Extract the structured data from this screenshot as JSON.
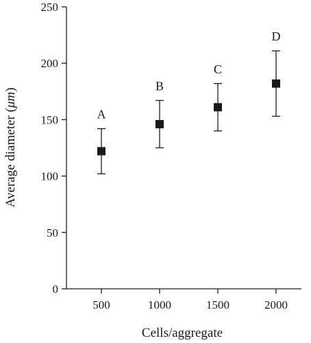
{
  "chart_data": {
    "type": "scatter",
    "title": "",
    "xlabel": "Cells/aggregate",
    "ylabel_prefix": "Average diameter (",
    "ylabel_unit": "μm",
    "ylabel_suffix": ")",
    "categories": [
      "500",
      "1000",
      "1500",
      "2000"
    ],
    "ylim": [
      0,
      250
    ],
    "yticks": [
      0,
      50,
      100,
      150,
      200,
      250
    ],
    "grid": false,
    "points": [
      {
        "x": 500,
        "y": 122,
        "lower": 102,
        "upper": 142,
        "label": "A"
      },
      {
        "x": 1000,
        "y": 146,
        "lower": 125,
        "upper": 167,
        "label": "B"
      },
      {
        "x": 1500,
        "y": 161,
        "lower": 140,
        "upper": 182,
        "label": "C"
      },
      {
        "x": 2000,
        "y": 182,
        "lower": 153,
        "upper": 211,
        "label": "D"
      }
    ]
  }
}
